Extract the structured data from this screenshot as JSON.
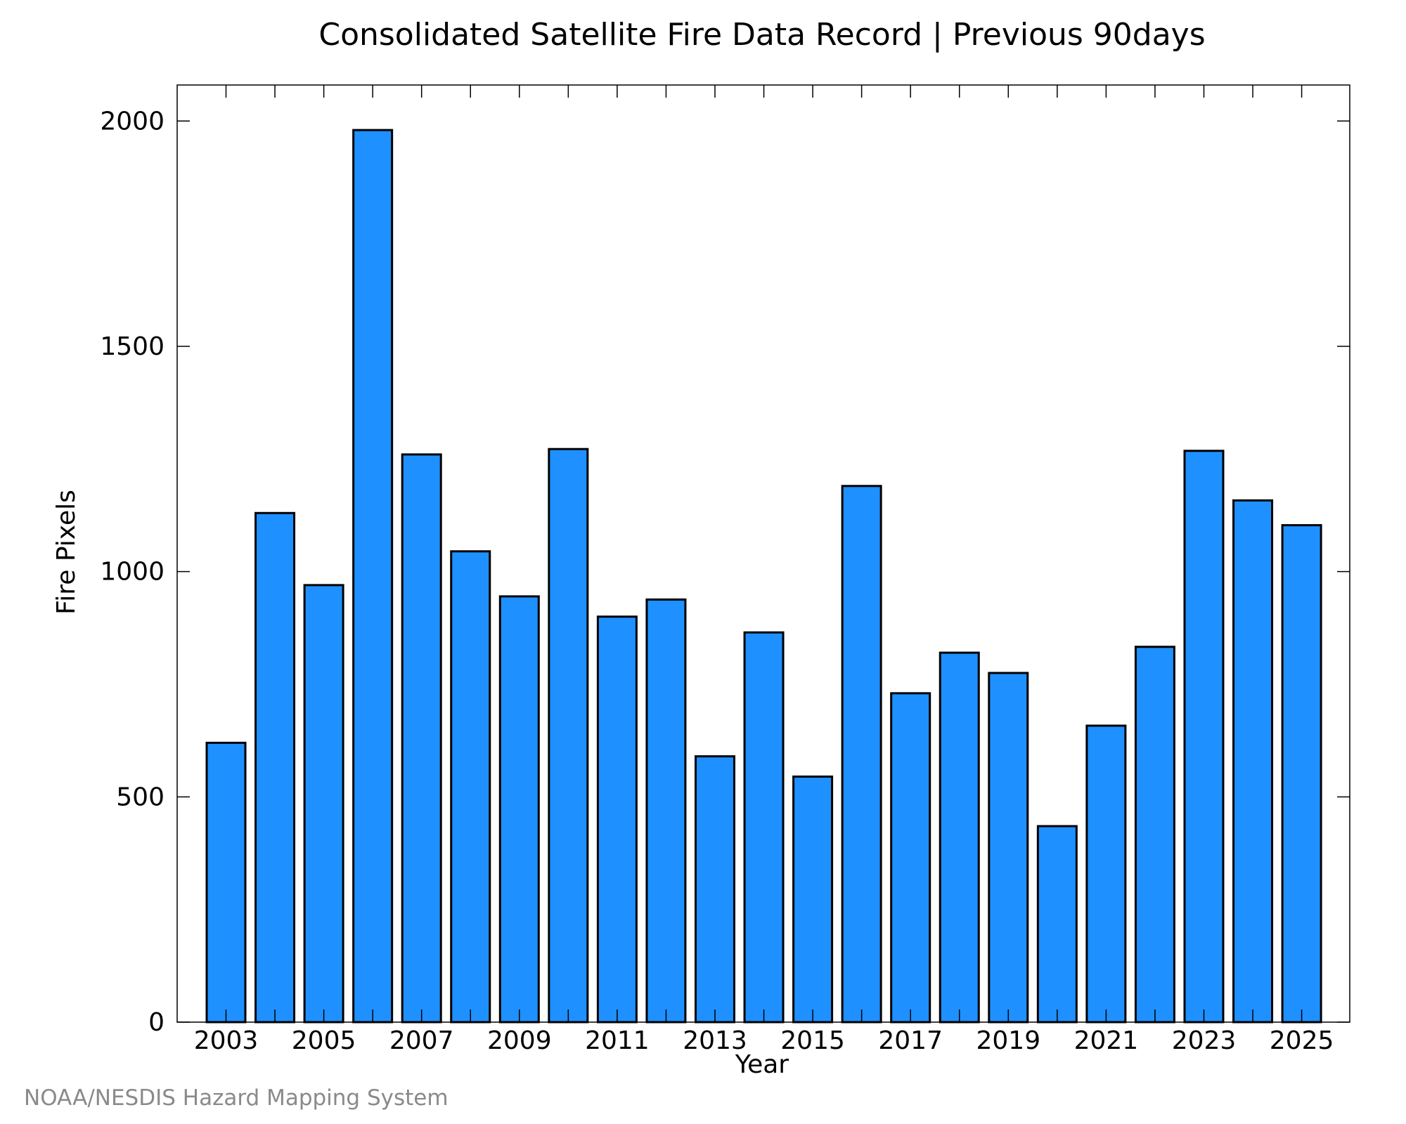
{
  "chart_data": {
    "type": "bar",
    "title": "Consolidated Satellite Fire Data Record | Previous 90days",
    "xlabel": "Year",
    "ylabel": "Fire Pixels",
    "categories": [
      "2003",
      "2004",
      "2005",
      "2006",
      "2007",
      "2008",
      "2009",
      "2010",
      "2011",
      "2012",
      "2013",
      "2014",
      "2015",
      "2016",
      "2017",
      "2018",
      "2019",
      "2020",
      "2021",
      "2022",
      "2023",
      "2024",
      "2025"
    ],
    "values": [
      620,
      1130,
      970,
      1980,
      1260,
      1045,
      945,
      1272,
      900,
      938,
      590,
      865,
      545,
      1190,
      730,
      820,
      775,
      435,
      658,
      833,
      1268,
      1158,
      1103
    ],
    "x_tick_labels": [
      "2003",
      "2005",
      "2007",
      "2009",
      "2011",
      "2013",
      "2015",
      "2017",
      "2019",
      "2021",
      "2023",
      "2025"
    ],
    "y_ticks": [
      0,
      500,
      1000,
      1500,
      2000
    ],
    "ylim": [
      0,
      2080
    ],
    "bar_color": "#1e90ff",
    "bar_edge_color": "#000000",
    "grid": false,
    "legend": "none"
  },
  "footer": {
    "credit": "NOAA/NESDIS Hazard Mapping System"
  }
}
